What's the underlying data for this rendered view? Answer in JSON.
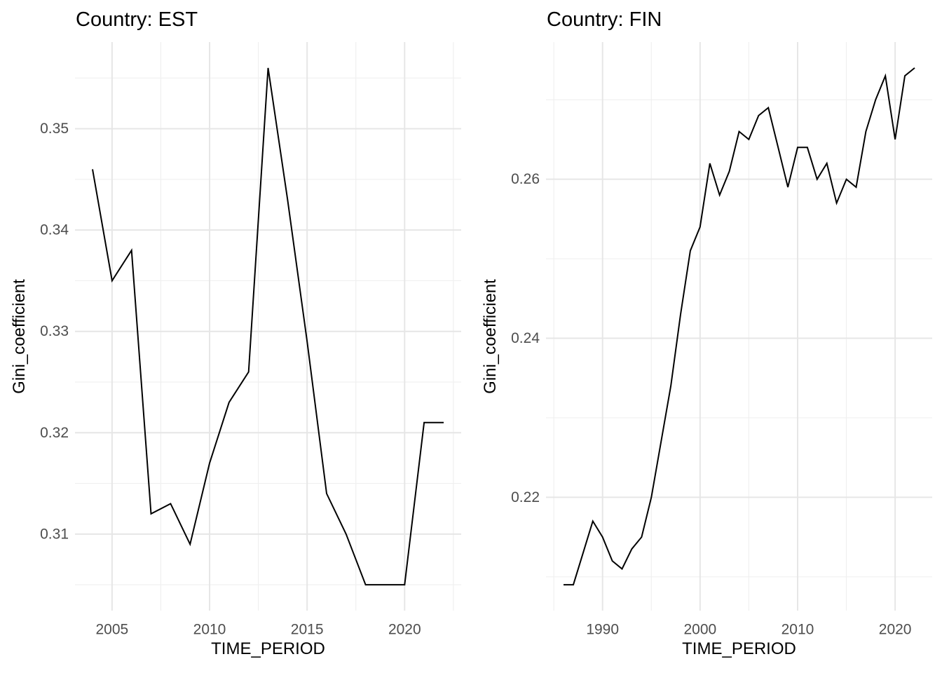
{
  "figure": {
    "background": "#ffffff"
  },
  "style": {
    "line_color": "#000000",
    "line_width": 2,
    "grid_major_color": "#e6e6e6",
    "grid_minor_color": "#f0f0f0",
    "tick_label_color": "#4d4d4d",
    "tick_label_size": 21,
    "title_color": "#000000",
    "axis_title_color": "#000000"
  },
  "chart_data": [
    {
      "type": "line",
      "title": "Country: EST",
      "xlabel": "TIME_PERIOD",
      "ylabel": "Gini_coefficient",
      "grid": "on",
      "legend": "none",
      "xlim": [
        2003.1,
        2022.9
      ],
      "ylim": [
        0.30245,
        0.35855
      ],
      "x_breaks": [
        2005,
        2010,
        2015,
        2020
      ],
      "x_tick_labels": [
        "2005",
        "2010",
        "2015",
        "2020"
      ],
      "x_minor_breaks": [
        2007.5,
        2012.5,
        2017.5,
        2022.5
      ],
      "y_breaks": [
        0.31,
        0.32,
        0.33,
        0.34,
        0.35
      ],
      "y_tick_labels": [
        "0.31",
        "0.32",
        "0.33",
        "0.34",
        "0.35"
      ],
      "y_minor_breaks": [
        0.305,
        0.315,
        0.325,
        0.335,
        0.345,
        0.355
      ],
      "series": [
        {
          "name": "EST",
          "x": [
            2004,
            2005,
            2006,
            2007,
            2008,
            2009,
            2010,
            2011,
            2012,
            2013,
            2014,
            2015,
            2016,
            2017,
            2018,
            2019,
            2020,
            2021,
            2022
          ],
          "values": [
            0.346,
            0.335,
            0.338,
            0.312,
            0.313,
            0.309,
            0.317,
            0.323,
            0.326,
            0.356,
            0.343,
            0.329,
            0.314,
            0.31,
            0.305,
            0.305,
            0.305,
            0.321,
            0.321
          ]
        }
      ]
    },
    {
      "type": "line",
      "title": "Country: FIN",
      "xlabel": "TIME_PERIOD",
      "ylabel": "Gini_coefficient",
      "grid": "on",
      "legend": "none",
      "xlim": [
        1984.2,
        2023.8
      ],
      "ylim": [
        0.20575,
        0.27725
      ],
      "x_breaks": [
        1990,
        2000,
        2010,
        2020
      ],
      "x_tick_labels": [
        "1990",
        "2000",
        "2010",
        "2020"
      ],
      "x_minor_breaks": [
        1985,
        1995,
        2005,
        2015
      ],
      "y_breaks": [
        0.22,
        0.24,
        0.26
      ],
      "y_tick_labels": [
        "0.22",
        "0.24",
        "0.26"
      ],
      "y_minor_breaks": [
        0.21,
        0.23,
        0.25,
        0.27
      ],
      "series": [
        {
          "name": "FIN",
          "x": [
            1986,
            1987,
            1988,
            1989,
            1990,
            1991,
            1992,
            1993,
            1994,
            1995,
            1996,
            1997,
            1998,
            1999,
            2000,
            2001,
            2002,
            2003,
            2004,
            2005,
            2006,
            2007,
            2008,
            2009,
            2010,
            2011,
            2012,
            2013,
            2014,
            2015,
            2016,
            2017,
            2018,
            2019,
            2020,
            2021,
            2022
          ],
          "values": [
            0.209,
            0.209,
            0.213,
            0.217,
            0.215,
            0.212,
            0.211,
            0.2135,
            0.215,
            0.22,
            0.227,
            0.234,
            0.243,
            0.251,
            0.254,
            0.262,
            0.258,
            0.261,
            0.266,
            0.265,
            0.268,
            0.269,
            0.264,
            0.259,
            0.264,
            0.264,
            0.26,
            0.262,
            0.257,
            0.26,
            0.259,
            0.266,
            0.27,
            0.273,
            0.265,
            0.273,
            0.274
          ]
        }
      ]
    }
  ]
}
